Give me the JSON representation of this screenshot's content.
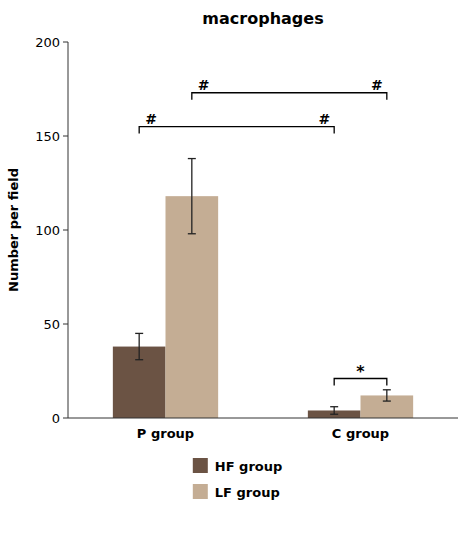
{
  "chart_data": {
    "type": "bar",
    "title": "macrophages",
    "y_label": "Number per field",
    "categories": [
      "P group",
      "C group"
    ],
    "series": [
      {
        "name": "HF group",
        "color": "#6b5344",
        "values": [
          38,
          4
        ],
        "errors": [
          7,
          2
        ]
      },
      {
        "name": "LF group",
        "color": "#c4ad94",
        "values": [
          118,
          12
        ],
        "errors": [
          20,
          3
        ]
      }
    ],
    "ylim": [
      0,
      200
    ],
    "yticks": [
      0,
      50,
      100,
      150,
      200
    ],
    "grid": false,
    "legend": "bottom",
    "annotations": [
      {
        "from": [
          0,
          1
        ],
        "to": [
          1,
          1
        ],
        "y": 173,
        "texts": [
          "#",
          "#"
        ]
      },
      {
        "from": [
          0,
          0
        ],
        "to": [
          1,
          0
        ],
        "y": 155,
        "texts": [
          "#",
          "#"
        ]
      },
      {
        "from": [
          1,
          0
        ],
        "to": [
          1,
          1
        ],
        "y": 21,
        "texts": [
          "*"
        ]
      }
    ]
  }
}
